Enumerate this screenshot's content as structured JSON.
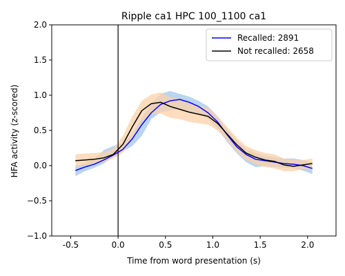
{
  "chart_data": {
    "type": "line",
    "title": "Ripple ca1 HPC 100_1100 ca1",
    "xlabel": "Time from word presentation (s)",
    "ylabel": "HFA activity (z-scored)",
    "xlim": [
      -0.7,
      2.3
    ],
    "ylim": [
      -1.0,
      2.0
    ],
    "xticks": [
      -0.5,
      0.0,
      0.5,
      1.0,
      1.5,
      2.0
    ],
    "xtick_labels": [
      "-0.5",
      "0.0",
      "0.5",
      "1.0",
      "1.5",
      "2.0"
    ],
    "yticks": [
      -1.0,
      -0.5,
      0.0,
      0.5,
      1.0,
      1.5,
      2.0
    ],
    "ytick_labels": [
      "−1.0",
      "−0.5",
      "0.0",
      "0.5",
      "1.0",
      "1.5",
      "2.0"
    ],
    "vline_x": 0.0,
    "legend_position": "top-right",
    "grid": false,
    "series": [
      {
        "name": "Recalled: 2891",
        "color": "#0000ff",
        "band_color": "#a4c6ea",
        "x": [
          -0.45,
          -0.35,
          -0.25,
          -0.15,
          -0.05,
          0.05,
          0.15,
          0.25,
          0.35,
          0.45,
          0.55,
          0.65,
          0.75,
          0.85,
          0.95,
          1.05,
          1.15,
          1.25,
          1.35,
          1.45,
          1.55,
          1.65,
          1.75,
          1.85,
          1.95,
          2.05
        ],
        "y": [
          -0.07,
          -0.02,
          0.02,
          0.08,
          0.15,
          0.23,
          0.38,
          0.58,
          0.75,
          0.87,
          0.92,
          0.94,
          0.9,
          0.84,
          0.75,
          0.62,
          0.44,
          0.27,
          0.16,
          0.09,
          0.07,
          0.05,
          0.03,
          0.02,
          0.0,
          -0.04
        ],
        "lower": [
          -0.15,
          -0.08,
          -0.03,
          0.03,
          0.12,
          0.2,
          0.28,
          0.42,
          0.66,
          0.76,
          0.78,
          0.8,
          0.78,
          0.74,
          0.66,
          0.52,
          0.34,
          0.18,
          0.05,
          -0.02,
          -0.01,
          -0.02,
          -0.03,
          -0.04,
          -0.07,
          -0.12
        ],
        "upper": [
          0.0,
          0.03,
          0.1,
          0.22,
          0.28,
          0.32,
          0.45,
          0.68,
          0.88,
          1.02,
          1.06,
          1.02,
          0.98,
          0.92,
          0.84,
          0.7,
          0.52,
          0.36,
          0.24,
          0.18,
          0.14,
          0.12,
          0.1,
          0.1,
          0.08,
          0.04
        ]
      },
      {
        "name": "Not recalled: 2658",
        "color": "#000000",
        "band_color": "#fcd2a8",
        "x": [
          -0.45,
          -0.35,
          -0.25,
          -0.15,
          -0.05,
          0.05,
          0.15,
          0.25,
          0.35,
          0.45,
          0.55,
          0.65,
          0.75,
          0.85,
          0.95,
          1.05,
          1.15,
          1.25,
          1.35,
          1.45,
          1.55,
          1.65,
          1.75,
          1.85,
          1.95,
          2.05
        ],
        "y": [
          0.07,
          0.08,
          0.09,
          0.11,
          0.16,
          0.3,
          0.55,
          0.78,
          0.88,
          0.9,
          0.84,
          0.8,
          0.76,
          0.73,
          0.7,
          0.6,
          0.45,
          0.3,
          0.18,
          0.12,
          0.08,
          0.06,
          0.01,
          -0.01,
          0.01,
          0.03
        ],
        "lower": [
          -0.02,
          0.0,
          0.02,
          0.05,
          0.1,
          0.18,
          0.4,
          0.62,
          0.74,
          0.74,
          0.68,
          0.66,
          0.62,
          0.6,
          0.58,
          0.5,
          0.36,
          0.2,
          0.08,
          0.02,
          -0.02,
          -0.04,
          -0.08,
          -0.08,
          -0.05,
          -0.04
        ],
        "upper": [
          0.16,
          0.17,
          0.18,
          0.19,
          0.24,
          0.42,
          0.7,
          0.92,
          1.01,
          1.04,
          0.97,
          0.94,
          0.88,
          0.85,
          0.82,
          0.7,
          0.55,
          0.4,
          0.28,
          0.22,
          0.18,
          0.16,
          0.1,
          0.08,
          0.08,
          0.1
        ]
      }
    ]
  }
}
